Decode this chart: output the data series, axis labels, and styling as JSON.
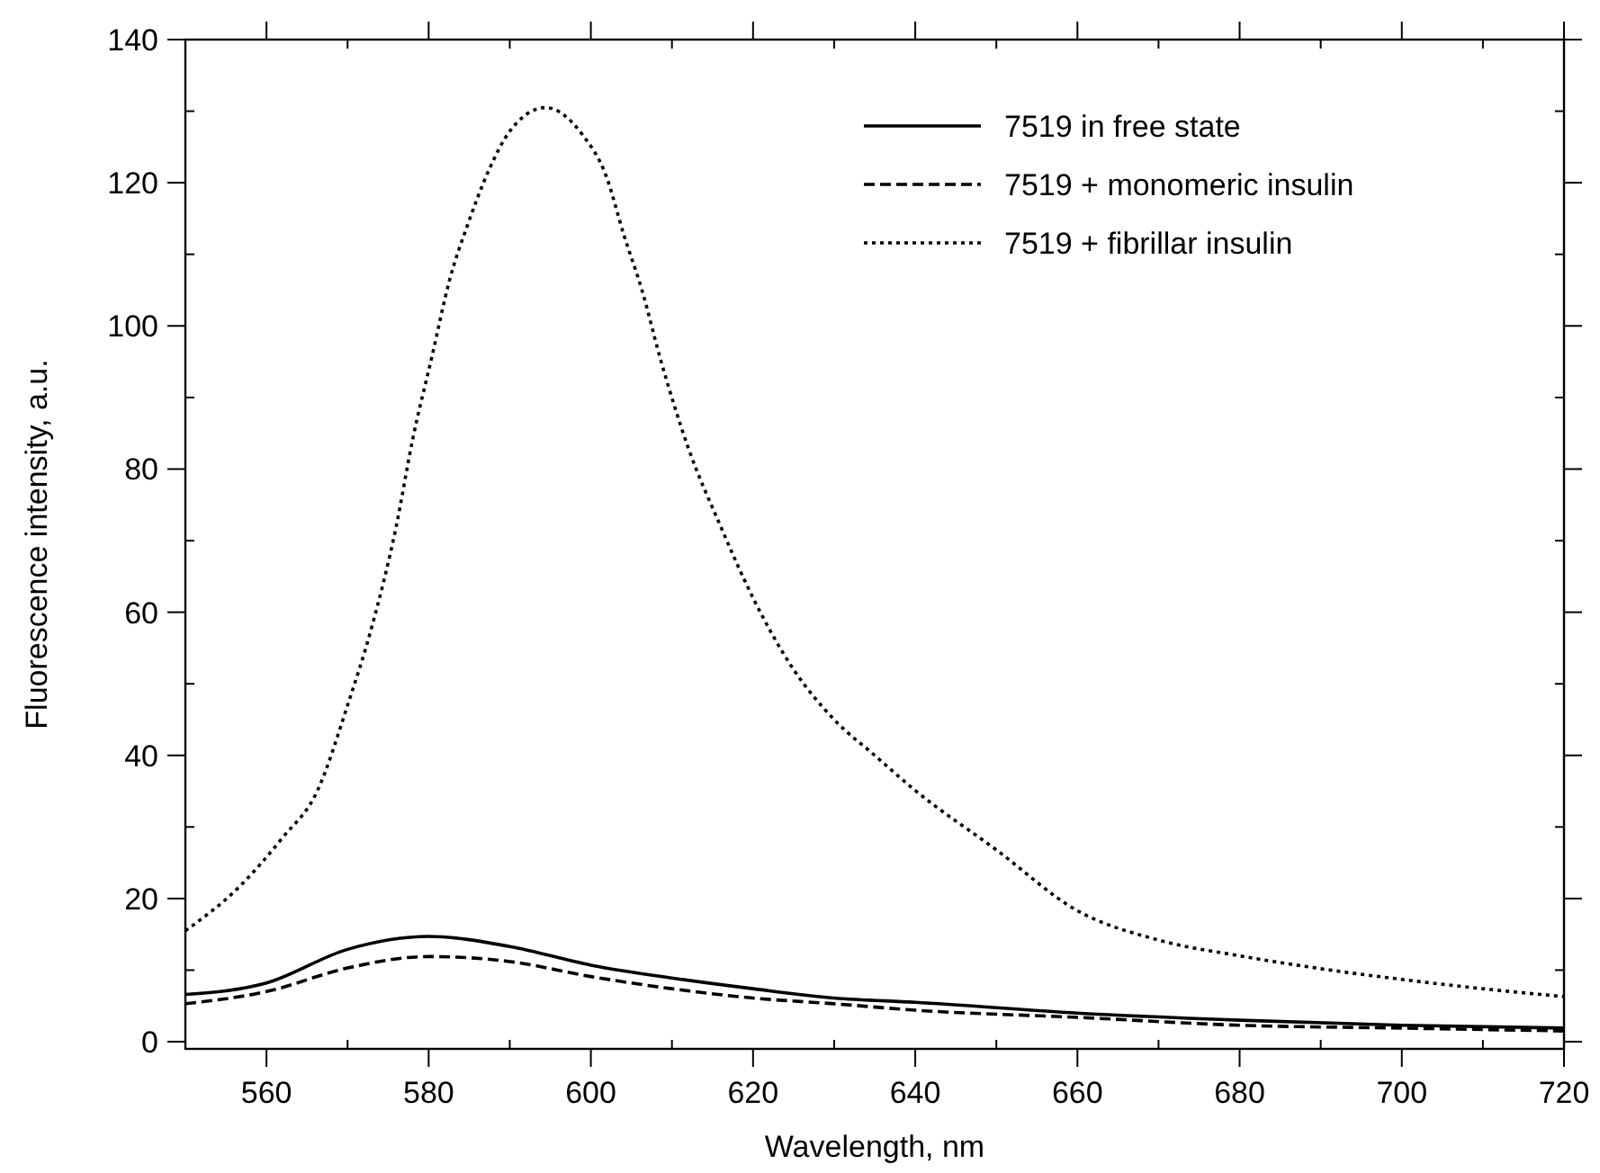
{
  "chart_data": {
    "type": "line",
    "xlabel": "Wavelength, nm",
    "ylabel": "Fluorescence intensity, a.u.",
    "xlim": [
      550,
      720
    ],
    "ylim": [
      -1,
      140
    ],
    "xticks": [
      560,
      {
        "value": 570,
        "label": null
      },
      580,
      {
        "value": 590,
        "label": null
      },
      600,
      {
        "value": 610,
        "label": null
      },
      620,
      {
        "value": 630,
        "label": null
      },
      640,
      {
        "value": 650,
        "label": null
      },
      660,
      {
        "value": 670,
        "label": null
      },
      680,
      {
        "value": 690,
        "label": null
      },
      700,
      {
        "value": 710,
        "label": null
      },
      720
    ],
    "yticks": [
      0,
      {
        "value": 10,
        "label": null
      },
      20,
      {
        "value": 30,
        "label": null
      },
      40,
      {
        "value": 50,
        "label": null
      },
      60,
      {
        "value": 70,
        "label": null
      },
      80,
      {
        "value": 90,
        "label": null
      },
      100,
      {
        "value": 110,
        "label": null
      },
      120,
      {
        "value": 130,
        "label": null
      },
      140
    ],
    "grid": false,
    "legend": "top right",
    "marker": "none",
    "series": [
      {
        "name": "7519 in free state",
        "color": "#000000",
        "line_style": "solid",
        "x": [
          550,
          560,
          570,
          580,
          590,
          600,
          610,
          620,
          630,
          640,
          660,
          680,
          700,
          720
        ],
        "values": [
          6.6,
          8.2,
          12.9,
          14.7,
          13.3,
          10.7,
          8.9,
          7.4,
          6.1,
          5.5,
          4.0,
          3.0,
          2.3,
          1.9
        ]
      },
      {
        "name": "7519 + monomeric insulin",
        "color": "#000000",
        "line_style": "dashed",
        "x": [
          550,
          560,
          570,
          580,
          590,
          600,
          610,
          620,
          630,
          640,
          660,
          680,
          700,
          720
        ],
        "values": [
          5.3,
          7.0,
          10.3,
          11.9,
          11.2,
          9.1,
          7.4,
          6.1,
          5.3,
          4.4,
          3.4,
          2.3,
          1.9,
          1.5
        ]
      },
      {
        "name": "7519 + fibrillar insulin",
        "color": "#000000",
        "line_style": "dotted",
        "x": [
          550,
          556.7,
          561.9,
          566.3,
          570,
          573,
          576,
          578,
          580.4,
          582.6,
          584.8,
          587.4,
          590,
          594.4,
          598.9,
          601.9,
          604.1,
          606.3,
          608.5,
          612,
          616,
          620,
          625,
          630,
          635,
          640,
          650,
          660,
          670,
          680,
          690,
          700,
          710,
          720
        ],
        "values": [
          15.5,
          21.7,
          28.4,
          35.1,
          47,
          58,
          72,
          84,
          95.7,
          106.5,
          114.1,
          121.7,
          127.2,
          130.5,
          126.8,
          120.9,
          112.6,
          105,
          95.7,
          83,
          72,
          62,
          52,
          45,
          40,
          35.1,
          26.8,
          18.3,
          14.2,
          12,
          10.2,
          8.7,
          7.4,
          6.3
        ]
      }
    ]
  }
}
